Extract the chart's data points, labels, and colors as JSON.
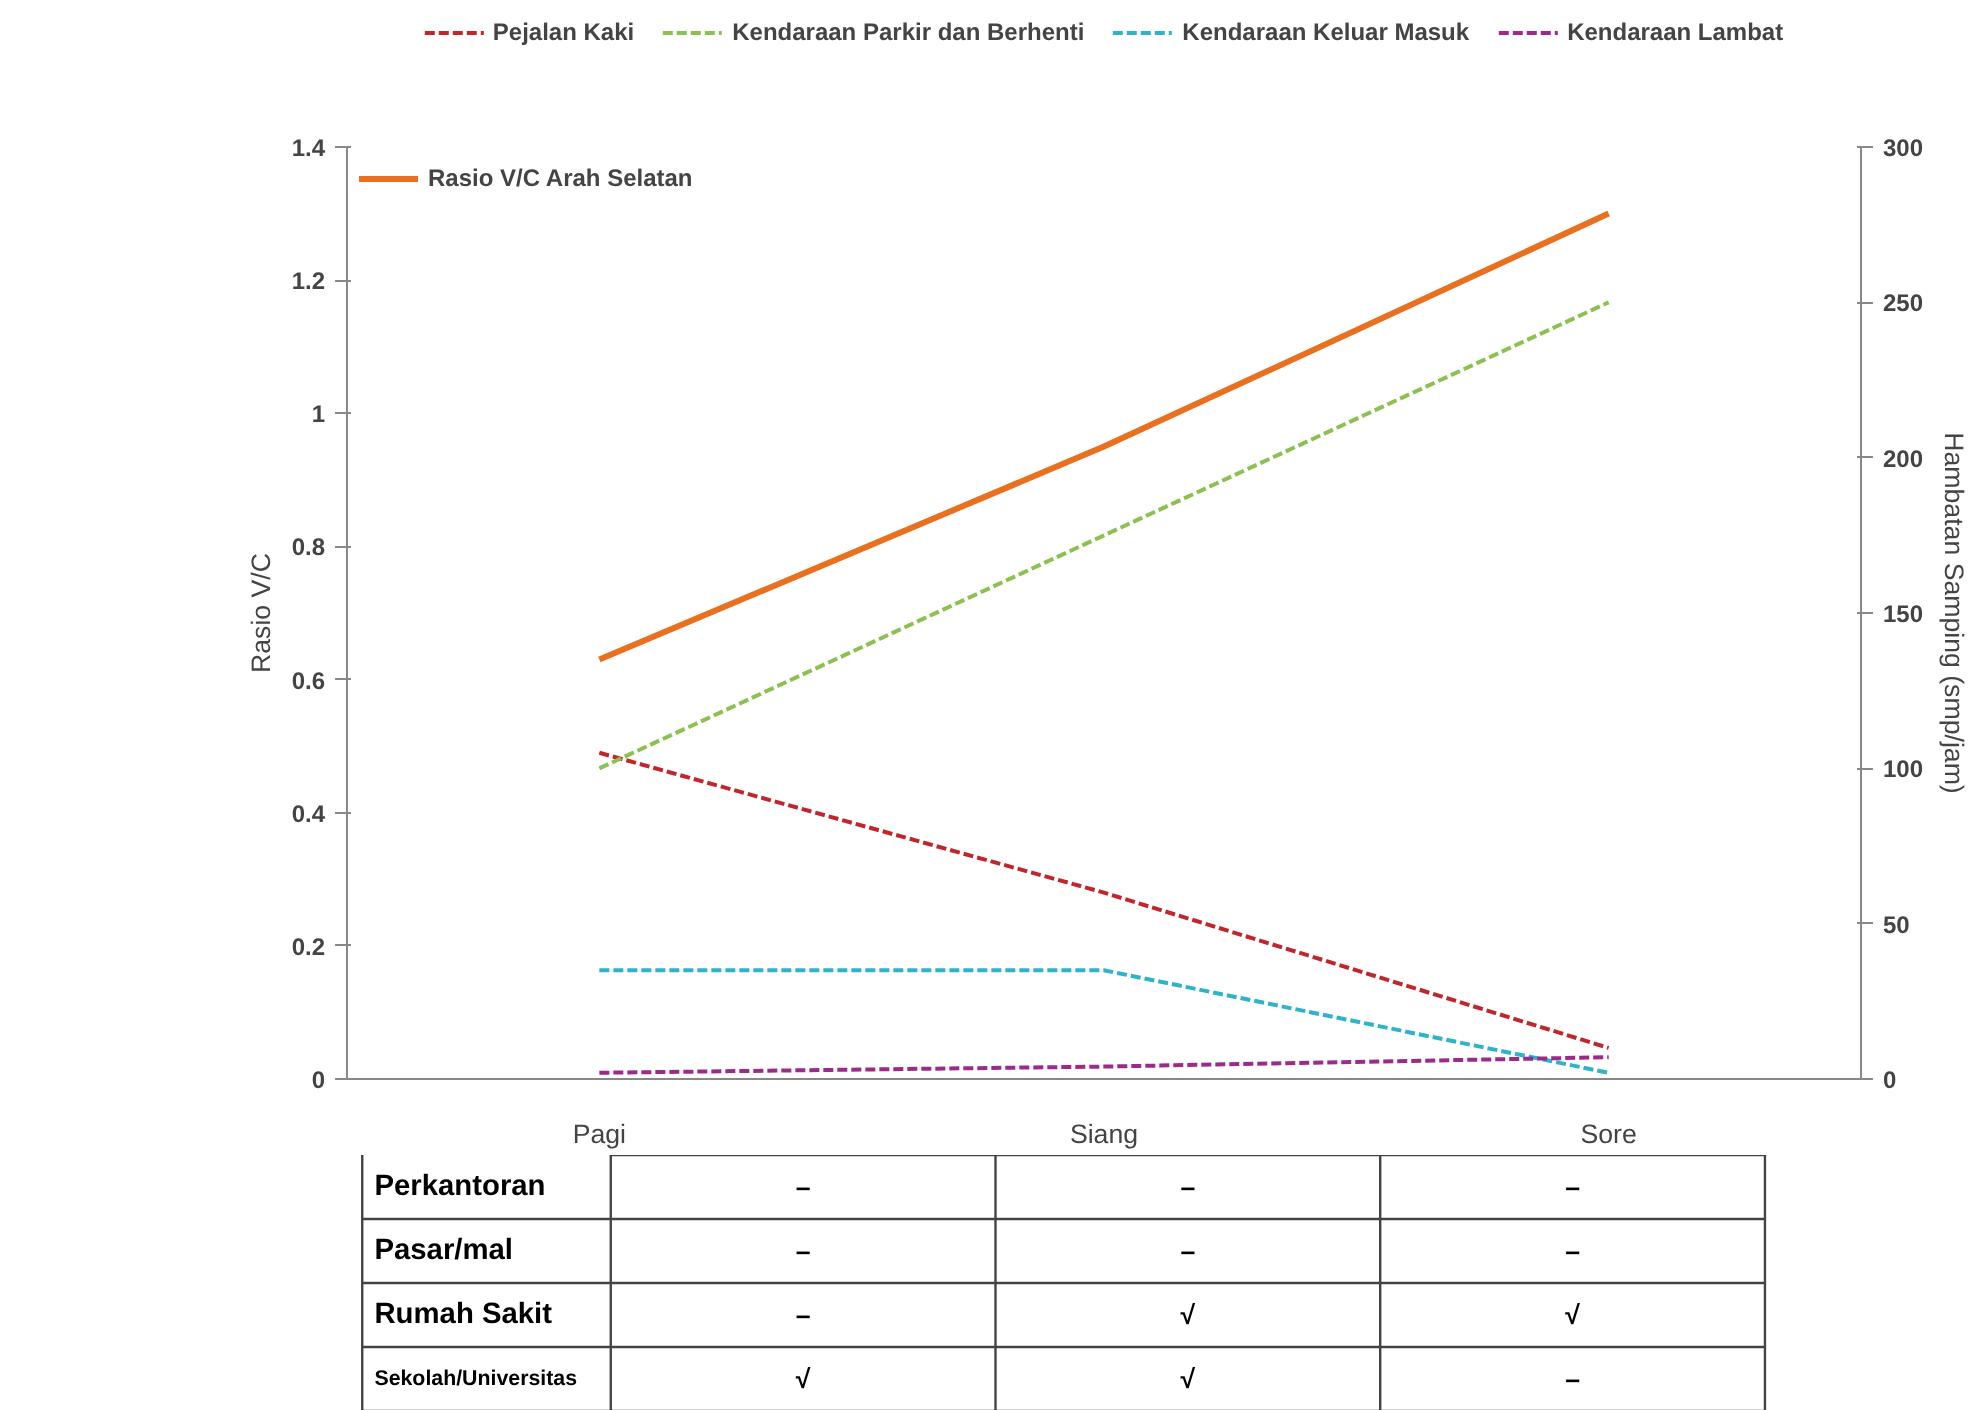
{
  "chart_data": {
    "type": "line",
    "ylabel": "Rasio V/C",
    "y2label": "Hambatan Samping (smp/jam)",
    "categories": [
      "Pagi",
      "Siang",
      "Sore"
    ],
    "ylim": [
      0,
      1.4
    ],
    "yticks": [
      0,
      0.2,
      0.4,
      0.6,
      0.8,
      1,
      1.2,
      1.4
    ],
    "y2lim": [
      0,
      300
    ],
    "y2ticks": [
      0,
      50,
      100,
      150,
      200,
      250,
      300
    ],
    "grid": false,
    "legend": "top",
    "series": [
      {
        "name": "Pejalan Kaki",
        "color": "#c0272d",
        "values": [
          105,
          60,
          10
        ],
        "axis": "y2",
        "line_style": "dashed"
      },
      {
        "name": "Kendaraan Parkir dan Berhenti",
        "color": "#8cc152",
        "values": [
          100,
          175,
          250
        ],
        "axis": "y2",
        "line_style": "dashed"
      },
      {
        "name": "Kendaraan Keluar Masuk",
        "color": "#2eb3c8",
        "values": [
          35,
          35,
          2
        ],
        "axis": "y2",
        "line_style": "dashed"
      },
      {
        "name": "Kendaraan Lambat",
        "color": "#9c2a8a",
        "values": [
          2,
          4,
          7
        ],
        "axis": "y2",
        "line_style": "dashed"
      },
      {
        "name": "Rasio V/C Arah Selatan",
        "color": "#e8701e",
        "values": [
          0.63,
          0.95,
          1.3
        ],
        "axis": "y",
        "line_style": "solid"
      }
    ],
    "annotations": [
      "Perkantoran",
      "–",
      "–",
      "–",
      "Pasar/mal",
      "–",
      "–",
      "–",
      "Rumah Sakit",
      "–",
      "√",
      "√",
      "Sekolah/Universitas",
      "√",
      "√",
      "–"
    ]
  }
}
